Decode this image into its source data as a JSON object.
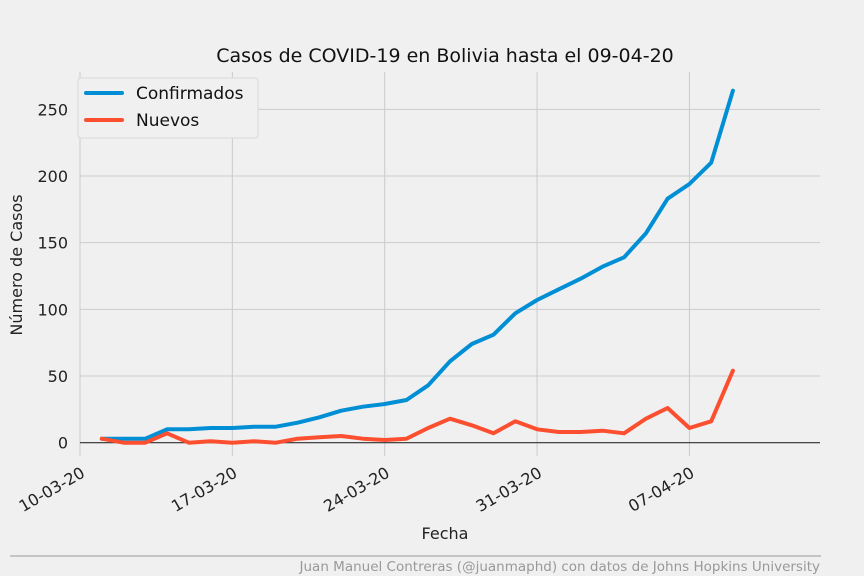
{
  "chart_data": {
    "type": "line",
    "title": "Casos de COVID-19 en Bolivia hasta el 09-04-20",
    "xlabel": "Fecha",
    "ylabel": "Número de Casos",
    "x_ticks": [
      "10-03-20",
      "17-03-20",
      "24-03-20",
      "31-03-20",
      "07-04-20"
    ],
    "x_range": [
      "2020-03-10",
      "2020-04-13"
    ],
    "ylim": [
      -10,
      278
    ],
    "y_ticks": [
      0,
      50,
      100,
      150,
      200,
      250
    ],
    "grid": true,
    "legend_position": "top-left",
    "x": [
      "2020-03-11",
      "2020-03-12",
      "2020-03-13",
      "2020-03-14",
      "2020-03-15",
      "2020-03-16",
      "2020-03-17",
      "2020-03-18",
      "2020-03-19",
      "2020-03-20",
      "2020-03-21",
      "2020-03-22",
      "2020-03-23",
      "2020-03-24",
      "2020-03-25",
      "2020-03-26",
      "2020-03-27",
      "2020-03-28",
      "2020-03-29",
      "2020-03-30",
      "2020-03-31",
      "2020-04-01",
      "2020-04-02",
      "2020-04-03",
      "2020-04-04",
      "2020-04-05",
      "2020-04-06",
      "2020-04-07",
      "2020-04-08",
      "2020-04-09"
    ],
    "series": [
      {
        "name": "Confirmados",
        "color": "#008fd5",
        "values": [
          3,
          3,
          3,
          10,
          10,
          11,
          11,
          12,
          12,
          15,
          19,
          24,
          27,
          29,
          32,
          43,
          61,
          74,
          81,
          97,
          107,
          115,
          123,
          132,
          139,
          157,
          183,
          194,
          210,
          264
        ]
      },
      {
        "name": "Nuevos",
        "color": "#fc4f30",
        "values": [
          3,
          0,
          0,
          7,
          0,
          1,
          0,
          1,
          0,
          3,
          4,
          5,
          3,
          2,
          3,
          11,
          18,
          13,
          7,
          16,
          10,
          8,
          8,
          9,
          7,
          18,
          26,
          11,
          16,
          54
        ]
      }
    ]
  },
  "footer": {
    "credit": "Juan Manuel Contreras (@juanmaphd) con datos de Johns Hopkins University"
  }
}
